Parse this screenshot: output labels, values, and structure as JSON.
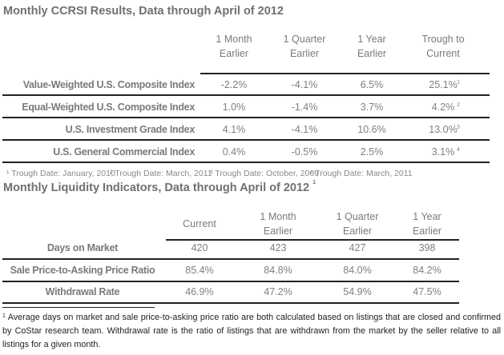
{
  "table1": {
    "title": "Monthly CCRSI Results, Data through April of 2012",
    "headers": [
      [
        "1 Month",
        "Earlier"
      ],
      [
        "1 Quarter",
        "Earlier"
      ],
      [
        "1 Year",
        "Earlier"
      ],
      [
        "Trough to",
        "Current"
      ]
    ],
    "rows": [
      {
        "label": "Value-Weighted U.S. Composite Index",
        "values": [
          "-2.2%",
          "-4.1%",
          "6.5%",
          "25.1%"
        ],
        "sup": "1"
      },
      {
        "label": "Equal-Weighted U.S. Composite Index",
        "values": [
          "1.0%",
          "-1.4%",
          "3.7%",
          "4.2%"
        ],
        "sup": "2"
      },
      {
        "label": "U.S. Investment Grade Index",
        "values": [
          "4.1%",
          "-4.1%",
          "10.6%",
          "13.0%"
        ],
        "sup": "3"
      },
      {
        "label": "U.S. General Commercial Index",
        "values": [
          "0.4%",
          "-0.5%",
          "2.5%",
          "3.1%"
        ],
        "sup": "4"
      }
    ],
    "footnotes": [
      "¹ Trough Date: January, 2010",
      "² Trough Date: March, 2011",
      "³ Trough Date: October, 2009",
      "⁴ Trough Date: March, 2011"
    ]
  },
  "table2": {
    "title": "Monthly Liquidity Indicators, Data through April of 2012",
    "title_sup": "1",
    "headers": [
      [
        "Current"
      ],
      [
        "1 Month",
        "Earlier"
      ],
      [
        "1 Quarter",
        "Earlier"
      ],
      [
        "1 Year",
        "Earlier"
      ]
    ],
    "rows": [
      {
        "label": "Days on Market",
        "values": [
          "420",
          "423",
          "427",
          "398"
        ]
      },
      {
        "label": "Sale Price-to-Asking Price Ratio",
        "values": [
          "85.4%",
          "84.8%",
          "84.0%",
          "84.2%"
        ]
      },
      {
        "label": "Withdrawal Rate",
        "values": [
          "46.9%",
          "47.2%",
          "54.9%",
          "47.5%"
        ]
      }
    ]
  },
  "footnote": {
    "marker": "1",
    "text": " Average days on market and sale price-to-asking price ratio are both calculated based on listings that are closed and confirmed by CoStar research team. Withdrawal rate is the ratio of listings that are withdrawn from the market by the seller relative to all listings for a given month."
  }
}
